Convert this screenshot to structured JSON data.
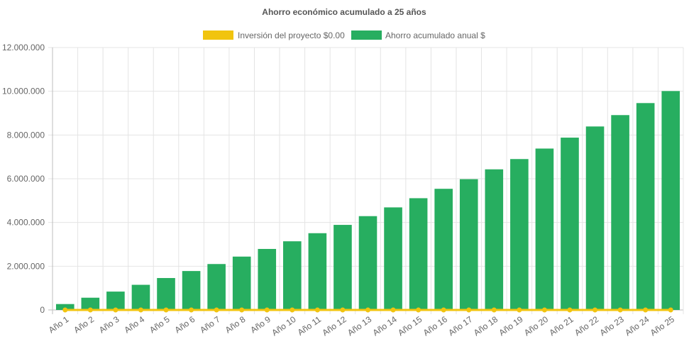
{
  "chart_data": {
    "type": "bar",
    "title": "Ahorro económico acumulado a 25 años",
    "categories": [
      "Año 1",
      "Año 2",
      "Año 3",
      "Año 4",
      "Año 5",
      "Año 6",
      "Año 7",
      "Año 8",
      "Año 9",
      "Año 10",
      "Año 11",
      "Año 12",
      "Año 13",
      "Año 14",
      "Año 15",
      "Año 16",
      "Año 17",
      "Año 18",
      "Año 19",
      "Año 20",
      "Año 21",
      "Año 22",
      "Año 23",
      "Año 24",
      "Año 25"
    ],
    "series": [
      {
        "name": "Inversión del proyecto $0.00",
        "type": "line",
        "color": "#f1c40f",
        "values": [
          0,
          0,
          0,
          0,
          0,
          0,
          0,
          0,
          0,
          0,
          0,
          0,
          0,
          0,
          0,
          0,
          0,
          0,
          0,
          0,
          0,
          0,
          0,
          0,
          0
        ]
      },
      {
        "name": "Ahorro acumulado anual $",
        "type": "bar",
        "color": "#27ae60",
        "values": [
          270000,
          560000,
          840000,
          1150000,
          1460000,
          1780000,
          2100000,
          2440000,
          2790000,
          3140000,
          3510000,
          3890000,
          4290000,
          4690000,
          5110000,
          5540000,
          5980000,
          6430000,
          6900000,
          7380000,
          7880000,
          8390000,
          8910000,
          9460000,
          10010000
        ]
      }
    ],
    "yticks": [
      "0",
      "2.000.000",
      "4.000.000",
      "6.000.000",
      "8.000.000",
      "10.000.000",
      "12.000.000"
    ],
    "ylim": [
      0,
      12000000
    ],
    "grid": true,
    "legend_position": "top"
  }
}
